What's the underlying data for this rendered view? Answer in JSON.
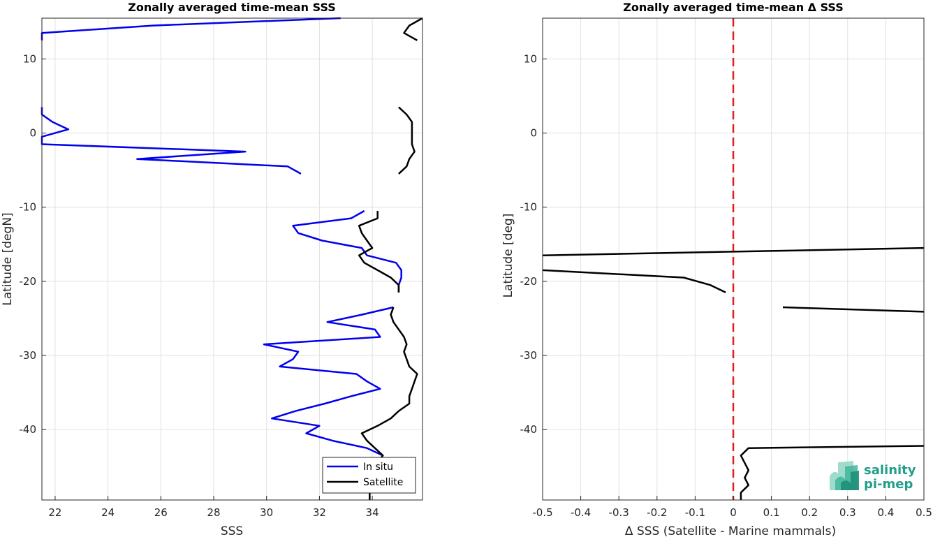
{
  "logo": {
    "line1": "salinity",
    "line2": "pi-mep",
    "color": "#1f9e89"
  },
  "chart_data": [
    {
      "type": "line",
      "title": "Zonally averaged time-mean SSS",
      "xlabel": "SSS",
      "ylabel": "Latitude [degN]",
      "xlim": [
        21.5,
        35.9
      ],
      "ylim": [
        -49.5,
        15.5
      ],
      "xticks": [
        22,
        24,
        26,
        28,
        30,
        32,
        34
      ],
      "yticks": [
        -40,
        -30,
        -20,
        -10,
        0,
        10
      ],
      "grid": true,
      "legend": {
        "position": "bottom-right",
        "entries": [
          "In situ",
          "Satellite"
        ]
      },
      "series": [
        {
          "name": "In situ",
          "color": "#0000ee",
          "segments": [
            [
              [
                32.8,
                15.5
              ],
              [
                25.7,
                14.5
              ],
              [
                21.5,
                13.5
              ],
              [
                21.5,
                12.5
              ]
            ],
            [
              [
                21.5,
                3.5
              ],
              [
                21.5,
                2.5
              ],
              [
                21.9,
                1.5
              ],
              [
                22.5,
                0.5
              ],
              [
                21.5,
                -0.5
              ],
              [
                21.5,
                -1.5
              ],
              [
                29.2,
                -2.5
              ],
              [
                25.1,
                -3.5
              ],
              [
                30.8,
                -4.5
              ],
              [
                31.3,
                -5.5
              ]
            ],
            [
              [
                33.7,
                -10.5
              ],
              [
                33.2,
                -11.5
              ],
              [
                31.0,
                -12.5
              ],
              [
                31.2,
                -13.5
              ],
              [
                32.1,
                -14.5
              ],
              [
                33.6,
                -15.5
              ],
              [
                33.8,
                -16.5
              ],
              [
                34.9,
                -17.5
              ],
              [
                35.1,
                -18.5
              ],
              [
                35.1,
                -19.5
              ],
              [
                35.0,
                -20.5
              ],
              [
                35.0,
                -21.5
              ]
            ],
            [
              [
                34.8,
                -23.5
              ],
              [
                33.6,
                -24.5
              ],
              [
                32.3,
                -25.5
              ],
              [
                34.1,
                -26.5
              ],
              [
                34.3,
                -27.5
              ],
              [
                29.9,
                -28.5
              ],
              [
                31.2,
                -29.5
              ],
              [
                31.0,
                -30.5
              ],
              [
                30.5,
                -31.5
              ],
              [
                33.4,
                -32.5
              ],
              [
                33.8,
                -33.5
              ],
              [
                34.3,
                -34.5
              ],
              [
                33.2,
                -35.5
              ],
              [
                32.2,
                -36.5
              ],
              [
                31.1,
                -37.5
              ],
              [
                30.2,
                -38.5
              ],
              [
                32.0,
                -39.5
              ],
              [
                31.5,
                -40.5
              ],
              [
                32.5,
                -41.5
              ],
              [
                33.8,
                -42.5
              ],
              [
                34.4,
                -43.5
              ],
              [
                34.2,
                -44.5
              ],
              [
                34.1,
                -45.5
              ],
              [
                34.0,
                -46.5
              ],
              [
                34.0,
                -47.5
              ],
              [
                33.9,
                -48.5
              ],
              [
                33.9,
                -49.5
              ]
            ]
          ]
        },
        {
          "name": "Satellite",
          "color": "#000000",
          "segments": [
            [
              [
                35.9,
                15.5
              ],
              [
                35.4,
                14.5
              ],
              [
                35.2,
                13.5
              ],
              [
                35.7,
                12.5
              ]
            ],
            [
              [
                35.0,
                3.5
              ],
              [
                35.3,
                2.5
              ],
              [
                35.5,
                1.5
              ],
              [
                35.5,
                0.5
              ],
              [
                35.5,
                -0.5
              ],
              [
                35.5,
                -1.5
              ],
              [
                35.6,
                -2.5
              ],
              [
                35.4,
                -3.5
              ],
              [
                35.3,
                -4.5
              ],
              [
                35.0,
                -5.5
              ]
            ],
            [
              [
                34.2,
                -10.5
              ],
              [
                34.2,
                -11.5
              ],
              [
                33.5,
                -12.5
              ],
              [
                33.6,
                -13.5
              ],
              [
                33.8,
                -14.5
              ],
              [
                34.0,
                -15.5
              ],
              [
                33.5,
                -16.5
              ],
              [
                33.7,
                -17.5
              ],
              [
                34.2,
                -18.5
              ],
              [
                34.7,
                -19.5
              ],
              [
                35.0,
                -20.5
              ],
              [
                35.0,
                -21.5
              ]
            ],
            [
              [
                34.8,
                -23.5
              ],
              [
                34.7,
                -24.5
              ],
              [
                34.8,
                -25.5
              ],
              [
                35.0,
                -26.5
              ],
              [
                35.2,
                -27.5
              ],
              [
                35.3,
                -28.5
              ],
              [
                35.2,
                -29.5
              ],
              [
                35.3,
                -30.5
              ],
              [
                35.4,
                -31.5
              ],
              [
                35.7,
                -32.5
              ],
              [
                35.6,
                -33.5
              ],
              [
                35.5,
                -34.5
              ],
              [
                35.4,
                -35.5
              ],
              [
                35.4,
                -36.5
              ],
              [
                35.0,
                -37.5
              ],
              [
                34.7,
                -38.5
              ],
              [
                34.2,
                -39.5
              ],
              [
                33.6,
                -40.5
              ],
              [
                33.8,
                -41.5
              ],
              [
                34.1,
                -42.5
              ],
              [
                34.4,
                -43.5
              ],
              [
                34.2,
                -44.5
              ],
              [
                34.1,
                -45.5
              ],
              [
                34.0,
                -46.5
              ],
              [
                34.0,
                -47.5
              ],
              [
                33.9,
                -48.5
              ],
              [
                33.9,
                -49.5
              ]
            ]
          ]
        }
      ]
    },
    {
      "type": "line",
      "title": "Zonally averaged time-mean Δ SSS",
      "xlabel": "Δ SSS (Satellite - Marine mammals)",
      "ylabel": "Latitude [deg]",
      "xlim": [
        -0.5,
        0.5
      ],
      "ylim": [
        -49.5,
        15.5
      ],
      "xticks": [
        -0.5,
        -0.4,
        -0.3,
        -0.2,
        -0.1,
        0,
        0.1,
        0.2,
        0.3,
        0.4,
        0.5
      ],
      "yticks": [
        -40,
        -30,
        -20,
        -10,
        0,
        10
      ],
      "grid": true,
      "reference_line": {
        "x": 0,
        "color": "#e02020",
        "style": "dashed"
      },
      "series": [
        {
          "color": "#000000",
          "segments": [
            [
              [
                -0.5,
                -16.5
              ],
              [
                0.5,
                -15.5
              ]
            ],
            [
              [
                -0.5,
                -18.5
              ],
              [
                -0.13,
                -19.5
              ],
              [
                -0.06,
                -20.5
              ],
              [
                -0.02,
                -21.5
              ]
            ],
            [
              [
                0.13,
                -23.5
              ],
              [
                0.5,
                -24.1
              ]
            ],
            [
              [
                0.5,
                -42.2
              ],
              [
                0.04,
                -42.5
              ],
              [
                0.02,
                -43.5
              ],
              [
                0.03,
                -44.5
              ],
              [
                0.04,
                -45.5
              ],
              [
                0.03,
                -46.5
              ],
              [
                0.04,
                -47.5
              ],
              [
                0.02,
                -48.5
              ],
              [
                0.02,
                -49.5
              ]
            ]
          ]
        }
      ]
    }
  ]
}
